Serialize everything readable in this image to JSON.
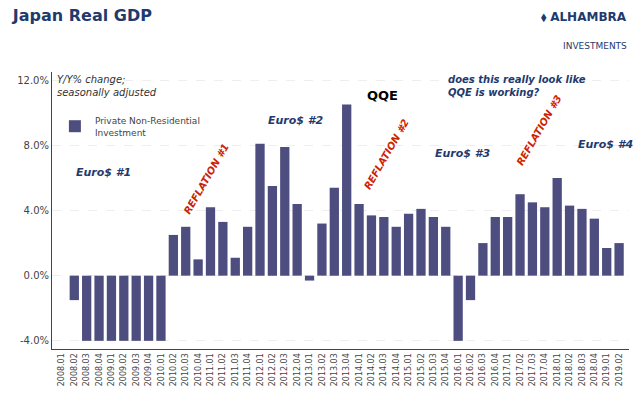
{
  "chart_data": {
    "type": "bar",
    "title": "Japan Real GDP",
    "subtitle": "Y/Y% change;\nseasonally adjusted",
    "categories": [
      "2008.01",
      "2008.02",
      "2008.03",
      "2008.04",
      "2009.01",
      "2009.02",
      "2009.03",
      "2009.04",
      "2010.01",
      "2010.02",
      "2010.03",
      "2010.04",
      "2011.01",
      "2011.02",
      "2011.03",
      "2011.04",
      "2012.01",
      "2012.02",
      "2012.03",
      "2012.04",
      "2013.01",
      "2013.02",
      "2013.03",
      "2013.04",
      "2014.01",
      "2014.02",
      "2014.03",
      "2014.04",
      "2015.01",
      "2015.02",
      "2015.03",
      "2015.04",
      "2016.01",
      "2016.02",
      "2016.03",
      "2016.04",
      "2017.01",
      "2017.02",
      "2017.03",
      "2017.04",
      "2018.01",
      "2018.02",
      "2018.03",
      "2018.04",
      "2019.01",
      "2019.02"
    ],
    "series": [
      {
        "name": "Private Non-Residential\nInvestment",
        "color": "#4d4d7f",
        "values": [
          0.0,
          -1.5,
          -4.0,
          -4.0,
          -4.0,
          -4.0,
          -4.0,
          -4.0,
          -4.0,
          2.5,
          3.0,
          1.0,
          4.2,
          3.3,
          1.1,
          3.0,
          8.1,
          5.5,
          7.9,
          4.4,
          -0.3,
          3.2,
          5.4,
          10.5,
          4.4,
          3.7,
          3.6,
          3.0,
          3.8,
          4.1,
          3.6,
          3.0,
          -4.0,
          -1.5,
          2.0,
          3.6,
          3.6,
          5.0,
          4.5,
          4.2,
          6.0,
          4.3,
          4.1,
          3.5,
          1.7,
          2.0
        ]
      }
    ],
    "ylim": [
      -4.5,
      12.5
    ],
    "yticks": [
      {
        "value": -4.0,
        "label": "-4.0%"
      },
      {
        "value": 0.0,
        "label": "0.0%"
      },
      {
        "value": 4.0,
        "label": "4.0%"
      },
      {
        "value": 8.0,
        "label": "8.0%"
      },
      {
        "value": 12.0,
        "label": "12.0%"
      }
    ],
    "grid": true,
    "legend": "upper left",
    "annotations": [
      {
        "text": "Euro$ #1",
        "color": "#1f3a6e"
      },
      {
        "text": "REFLATION #1",
        "color": "#cc2200"
      },
      {
        "text": "Euro$ #2",
        "color": "#1f3a6e"
      },
      {
        "text": "QQE",
        "color": "#000000"
      },
      {
        "text": "REFLATION #2",
        "color": "#cc2200"
      },
      {
        "text": "Euro$ #3",
        "color": "#1f3a6e"
      },
      {
        "text": "REFLATION #3",
        "color": "#cc2200"
      },
      {
        "text": "Euro$ #4",
        "color": "#1f3a6e"
      },
      {
        "text": "does this really look like\nQQE is working?",
        "color": "#1f3a6e"
      },
      {
        "text": "⬧ ALHAMBRA",
        "color": "#1f3a6e"
      },
      {
        "text": "INVESTMENTS",
        "color": "#1f3a6e"
      }
    ]
  }
}
